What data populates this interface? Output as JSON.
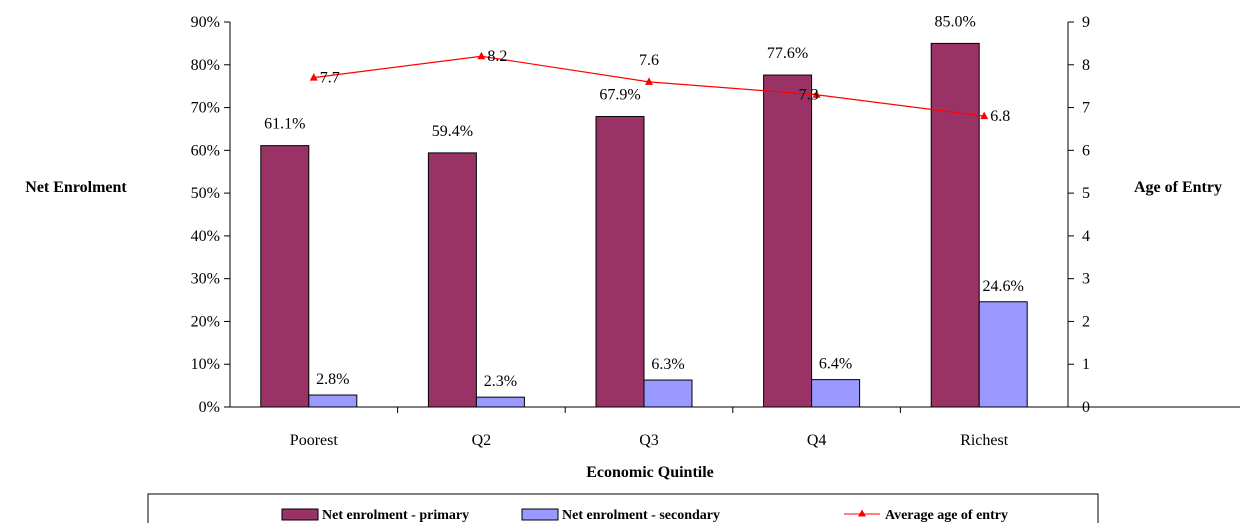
{
  "chart_data": {
    "type": "bar",
    "title": "",
    "categories": [
      "Poorest",
      "Q2",
      "Q3",
      "Q4",
      "Richest"
    ],
    "series": [
      {
        "name": "Net enrolment - primary",
        "kind": "bar",
        "axis": "left",
        "color": "#993366",
        "values": [
          61.1,
          59.4,
          67.9,
          77.6,
          85.0
        ],
        "labels": [
          "61.1%",
          "59.4%",
          "67.9%",
          "77.6%",
          "85.0%"
        ]
      },
      {
        "name": "Net enrolment - secondary",
        "kind": "bar",
        "axis": "left",
        "color": "#9999ff",
        "values": [
          2.8,
          2.3,
          6.3,
          6.4,
          24.6
        ],
        "labels": [
          "2.8%",
          "2.3%",
          "6.3%",
          "6.4%",
          "24.6%"
        ]
      },
      {
        "name": "Average age of entry",
        "kind": "line",
        "axis": "right",
        "color": "#ff0000",
        "values": [
          7.7,
          8.2,
          7.6,
          7.3,
          6.8
        ],
        "labels": [
          "7.7",
          "8.2",
          "7.6",
          "7.3",
          "6.8"
        ]
      }
    ],
    "xlabel": "Economic Quintile",
    "ylabel": "Net Enrolment",
    "y2label": "Age of Entry",
    "ylim": [
      0,
      90
    ],
    "y2lim": [
      0,
      9
    ],
    "yticks": [
      "0%",
      "10%",
      "20%",
      "30%",
      "40%",
      "50%",
      "60%",
      "70%",
      "80%",
      "90%"
    ],
    "y2ticks": [
      "0",
      "1",
      "2",
      "3",
      "4",
      "5",
      "6",
      "7",
      "8",
      "9"
    ],
    "grid": false,
    "legend_position": "bottom"
  }
}
